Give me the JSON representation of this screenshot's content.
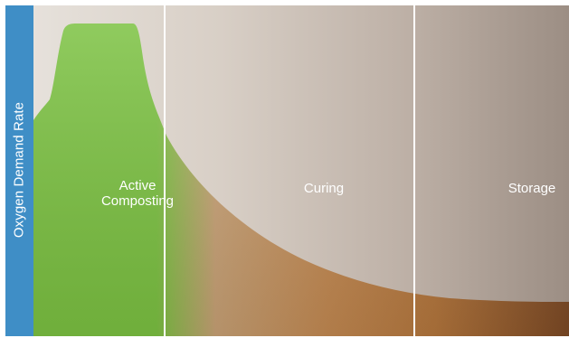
{
  "diagram": {
    "y_axis_label": "Oxygen Demand Rate",
    "phases": [
      {
        "label_line1": "Active",
        "label_line2": "Composting",
        "color": "#7cc242"
      },
      {
        "label": "Curing"
      },
      {
        "label": "Storage"
      }
    ],
    "colors": {
      "axis_band": "#3f8ec6",
      "active_fill": "#7cc242",
      "curve_fill_brown": "#b8763e",
      "background_light": "#ddd6ce",
      "background_dark": "#9a8c82",
      "divider": "#ffffff"
    }
  }
}
